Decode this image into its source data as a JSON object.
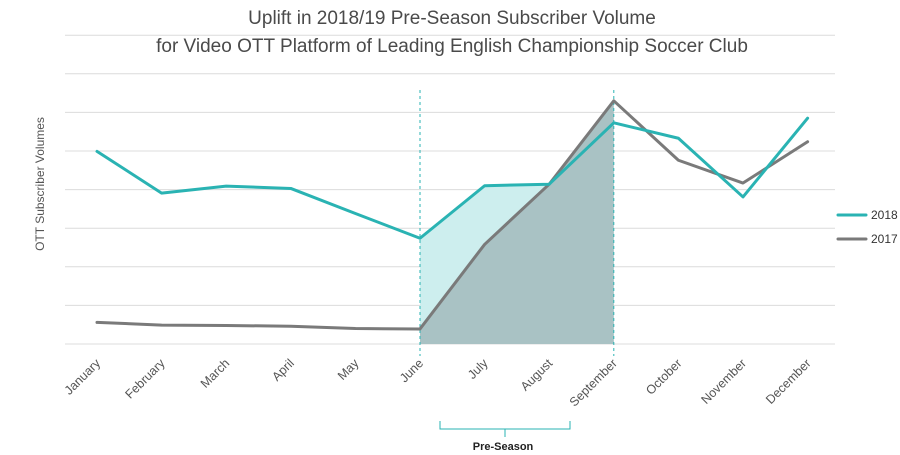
{
  "chart_data": {
    "type": "line",
    "title_lines": [
      "Uplift in 2018/19 Pre-Season Subscriber Volume",
      "for Video OTT Platform of Leading English Championship Soccer Club"
    ],
    "xlabel": "",
    "ylabel": "OTT Subscriber Volumes",
    "categories": [
      "January",
      "February",
      "March",
      "April",
      "May",
      "June",
      "July",
      "August",
      "September",
      "October",
      "November",
      "December"
    ],
    "ylim": [
      0,
      8
    ],
    "grid": true,
    "legend_position": "right",
    "series": [
      {
        "name": "2018",
        "color": "#2ab3b3",
        "values": [
          4.99,
          3.91,
          4.09,
          4.03,
          3.38,
          2.74,
          4.1,
          4.14,
          5.73,
          5.33,
          3.81,
          5.85
        ]
      },
      {
        "name": "2017",
        "color": "#7a7a7a",
        "values": [
          0.56,
          0.49,
          0.48,
          0.46,
          0.4,
          0.39,
          2.58,
          4.14,
          6.3,
          4.76,
          4.17,
          5.24
        ]
      }
    ],
    "highlight": {
      "start": "June",
      "end": "September",
      "label": "Pre-Season",
      "fill_2018": "#cdeeee",
      "fill_2017": "#a9c2c4",
      "guide_color": "#2ab3b3"
    }
  }
}
